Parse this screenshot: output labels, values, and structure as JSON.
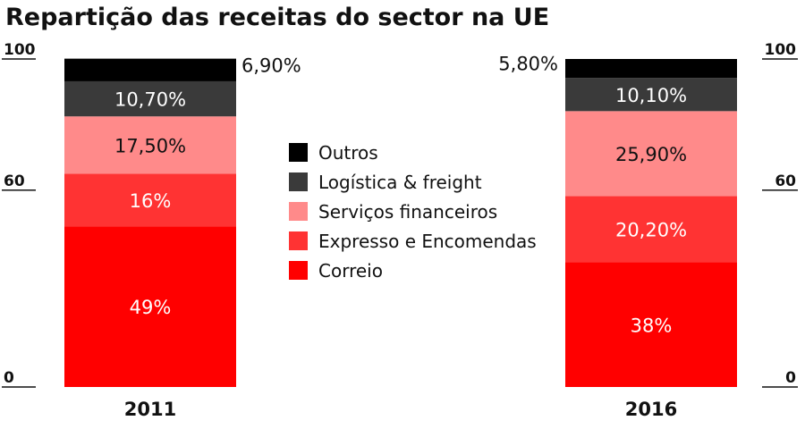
{
  "chart_data": {
    "type": "bar",
    "stacked": true,
    "title": "Repartição das receitas do sector na UE",
    "categories": [
      "2011",
      "2016"
    ],
    "ylim": [
      0,
      100
    ],
    "yticks": [
      "0",
      "60",
      "100"
    ],
    "ytick_values": [
      0,
      60,
      100
    ],
    "grid": false,
    "legend_position": "center",
    "series": [
      {
        "name": "Correio",
        "color": "#ff0000",
        "label_color": "#ffffff",
        "values": [
          49,
          38
        ],
        "labels": [
          "49%",
          "38%"
        ]
      },
      {
        "name": "Expresso e Encomendas",
        "color": "#ff3333",
        "label_color": "#ffffff",
        "values": [
          16,
          20.2
        ],
        "labels": [
          "16%",
          "20,20%"
        ]
      },
      {
        "name": "Serviços financeiros",
        "color": "#ff8a8a",
        "label_color": "#111111",
        "values": [
          17.5,
          25.9
        ],
        "labels": [
          "17,50%",
          "25,90%"
        ]
      },
      {
        "name": "Logística & freight",
        "color": "#3a3a3a",
        "label_color": "#ffffff",
        "values": [
          10.7,
          10.1
        ],
        "labels": [
          "10,70%",
          "10,10%"
        ]
      },
      {
        "name": "Outros",
        "color": "#000000",
        "label_color": "#111111",
        "values": [
          6.9,
          5.8
        ],
        "labels": [
          "6,90%",
          "5,80%"
        ]
      }
    ],
    "legend_order": [
      "Outros",
      "Logística & freight",
      "Serviços financeiros",
      "Expresso e Encomendas",
      "Correio"
    ]
  }
}
